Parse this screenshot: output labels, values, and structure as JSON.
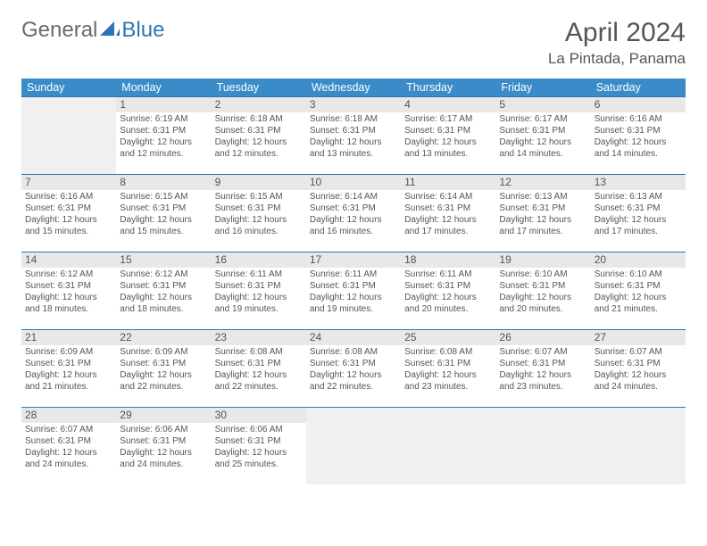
{
  "brand": {
    "part1": "General",
    "part2": "Blue"
  },
  "title": "April 2024",
  "location": "La Pintada, Panama",
  "header_bg": "#3b8bc9",
  "rule_color": "#2e75b6",
  "empty_bg": "#f0f0f0",
  "daynum_bg": "#e8e8e8",
  "days": [
    "Sunday",
    "Monday",
    "Tuesday",
    "Wednesday",
    "Thursday",
    "Friday",
    "Saturday"
  ],
  "weeks": [
    [
      null,
      {
        "n": "1",
        "sr": "Sunrise: 6:19 AM",
        "ss": "Sunset: 6:31 PM",
        "d1": "Daylight: 12 hours",
        "d2": "and 12 minutes."
      },
      {
        "n": "2",
        "sr": "Sunrise: 6:18 AM",
        "ss": "Sunset: 6:31 PM",
        "d1": "Daylight: 12 hours",
        "d2": "and 12 minutes."
      },
      {
        "n": "3",
        "sr": "Sunrise: 6:18 AM",
        "ss": "Sunset: 6:31 PM",
        "d1": "Daylight: 12 hours",
        "d2": "and 13 minutes."
      },
      {
        "n": "4",
        "sr": "Sunrise: 6:17 AM",
        "ss": "Sunset: 6:31 PM",
        "d1": "Daylight: 12 hours",
        "d2": "and 13 minutes."
      },
      {
        "n": "5",
        "sr": "Sunrise: 6:17 AM",
        "ss": "Sunset: 6:31 PM",
        "d1": "Daylight: 12 hours",
        "d2": "and 14 minutes."
      },
      {
        "n": "6",
        "sr": "Sunrise: 6:16 AM",
        "ss": "Sunset: 6:31 PM",
        "d1": "Daylight: 12 hours",
        "d2": "and 14 minutes."
      }
    ],
    [
      {
        "n": "7",
        "sr": "Sunrise: 6:16 AM",
        "ss": "Sunset: 6:31 PM",
        "d1": "Daylight: 12 hours",
        "d2": "and 15 minutes."
      },
      {
        "n": "8",
        "sr": "Sunrise: 6:15 AM",
        "ss": "Sunset: 6:31 PM",
        "d1": "Daylight: 12 hours",
        "d2": "and 15 minutes."
      },
      {
        "n": "9",
        "sr": "Sunrise: 6:15 AM",
        "ss": "Sunset: 6:31 PM",
        "d1": "Daylight: 12 hours",
        "d2": "and 16 minutes."
      },
      {
        "n": "10",
        "sr": "Sunrise: 6:14 AM",
        "ss": "Sunset: 6:31 PM",
        "d1": "Daylight: 12 hours",
        "d2": "and 16 minutes."
      },
      {
        "n": "11",
        "sr": "Sunrise: 6:14 AM",
        "ss": "Sunset: 6:31 PM",
        "d1": "Daylight: 12 hours",
        "d2": "and 17 minutes."
      },
      {
        "n": "12",
        "sr": "Sunrise: 6:13 AM",
        "ss": "Sunset: 6:31 PM",
        "d1": "Daylight: 12 hours",
        "d2": "and 17 minutes."
      },
      {
        "n": "13",
        "sr": "Sunrise: 6:13 AM",
        "ss": "Sunset: 6:31 PM",
        "d1": "Daylight: 12 hours",
        "d2": "and 17 minutes."
      }
    ],
    [
      {
        "n": "14",
        "sr": "Sunrise: 6:12 AM",
        "ss": "Sunset: 6:31 PM",
        "d1": "Daylight: 12 hours",
        "d2": "and 18 minutes."
      },
      {
        "n": "15",
        "sr": "Sunrise: 6:12 AM",
        "ss": "Sunset: 6:31 PM",
        "d1": "Daylight: 12 hours",
        "d2": "and 18 minutes."
      },
      {
        "n": "16",
        "sr": "Sunrise: 6:11 AM",
        "ss": "Sunset: 6:31 PM",
        "d1": "Daylight: 12 hours",
        "d2": "and 19 minutes."
      },
      {
        "n": "17",
        "sr": "Sunrise: 6:11 AM",
        "ss": "Sunset: 6:31 PM",
        "d1": "Daylight: 12 hours",
        "d2": "and 19 minutes."
      },
      {
        "n": "18",
        "sr": "Sunrise: 6:11 AM",
        "ss": "Sunset: 6:31 PM",
        "d1": "Daylight: 12 hours",
        "d2": "and 20 minutes."
      },
      {
        "n": "19",
        "sr": "Sunrise: 6:10 AM",
        "ss": "Sunset: 6:31 PM",
        "d1": "Daylight: 12 hours",
        "d2": "and 20 minutes."
      },
      {
        "n": "20",
        "sr": "Sunrise: 6:10 AM",
        "ss": "Sunset: 6:31 PM",
        "d1": "Daylight: 12 hours",
        "d2": "and 21 minutes."
      }
    ],
    [
      {
        "n": "21",
        "sr": "Sunrise: 6:09 AM",
        "ss": "Sunset: 6:31 PM",
        "d1": "Daylight: 12 hours",
        "d2": "and 21 minutes."
      },
      {
        "n": "22",
        "sr": "Sunrise: 6:09 AM",
        "ss": "Sunset: 6:31 PM",
        "d1": "Daylight: 12 hours",
        "d2": "and 22 minutes."
      },
      {
        "n": "23",
        "sr": "Sunrise: 6:08 AM",
        "ss": "Sunset: 6:31 PM",
        "d1": "Daylight: 12 hours",
        "d2": "and 22 minutes."
      },
      {
        "n": "24",
        "sr": "Sunrise: 6:08 AM",
        "ss": "Sunset: 6:31 PM",
        "d1": "Daylight: 12 hours",
        "d2": "and 22 minutes."
      },
      {
        "n": "25",
        "sr": "Sunrise: 6:08 AM",
        "ss": "Sunset: 6:31 PM",
        "d1": "Daylight: 12 hours",
        "d2": "and 23 minutes."
      },
      {
        "n": "26",
        "sr": "Sunrise: 6:07 AM",
        "ss": "Sunset: 6:31 PM",
        "d1": "Daylight: 12 hours",
        "d2": "and 23 minutes."
      },
      {
        "n": "27",
        "sr": "Sunrise: 6:07 AM",
        "ss": "Sunset: 6:31 PM",
        "d1": "Daylight: 12 hours",
        "d2": "and 24 minutes."
      }
    ],
    [
      {
        "n": "28",
        "sr": "Sunrise: 6:07 AM",
        "ss": "Sunset: 6:31 PM",
        "d1": "Daylight: 12 hours",
        "d2": "and 24 minutes."
      },
      {
        "n": "29",
        "sr": "Sunrise: 6:06 AM",
        "ss": "Sunset: 6:31 PM",
        "d1": "Daylight: 12 hours",
        "d2": "and 24 minutes."
      },
      {
        "n": "30",
        "sr": "Sunrise: 6:06 AM",
        "ss": "Sunset: 6:31 PM",
        "d1": "Daylight: 12 hours",
        "d2": "and 25 minutes."
      },
      null,
      null,
      null,
      null
    ]
  ]
}
